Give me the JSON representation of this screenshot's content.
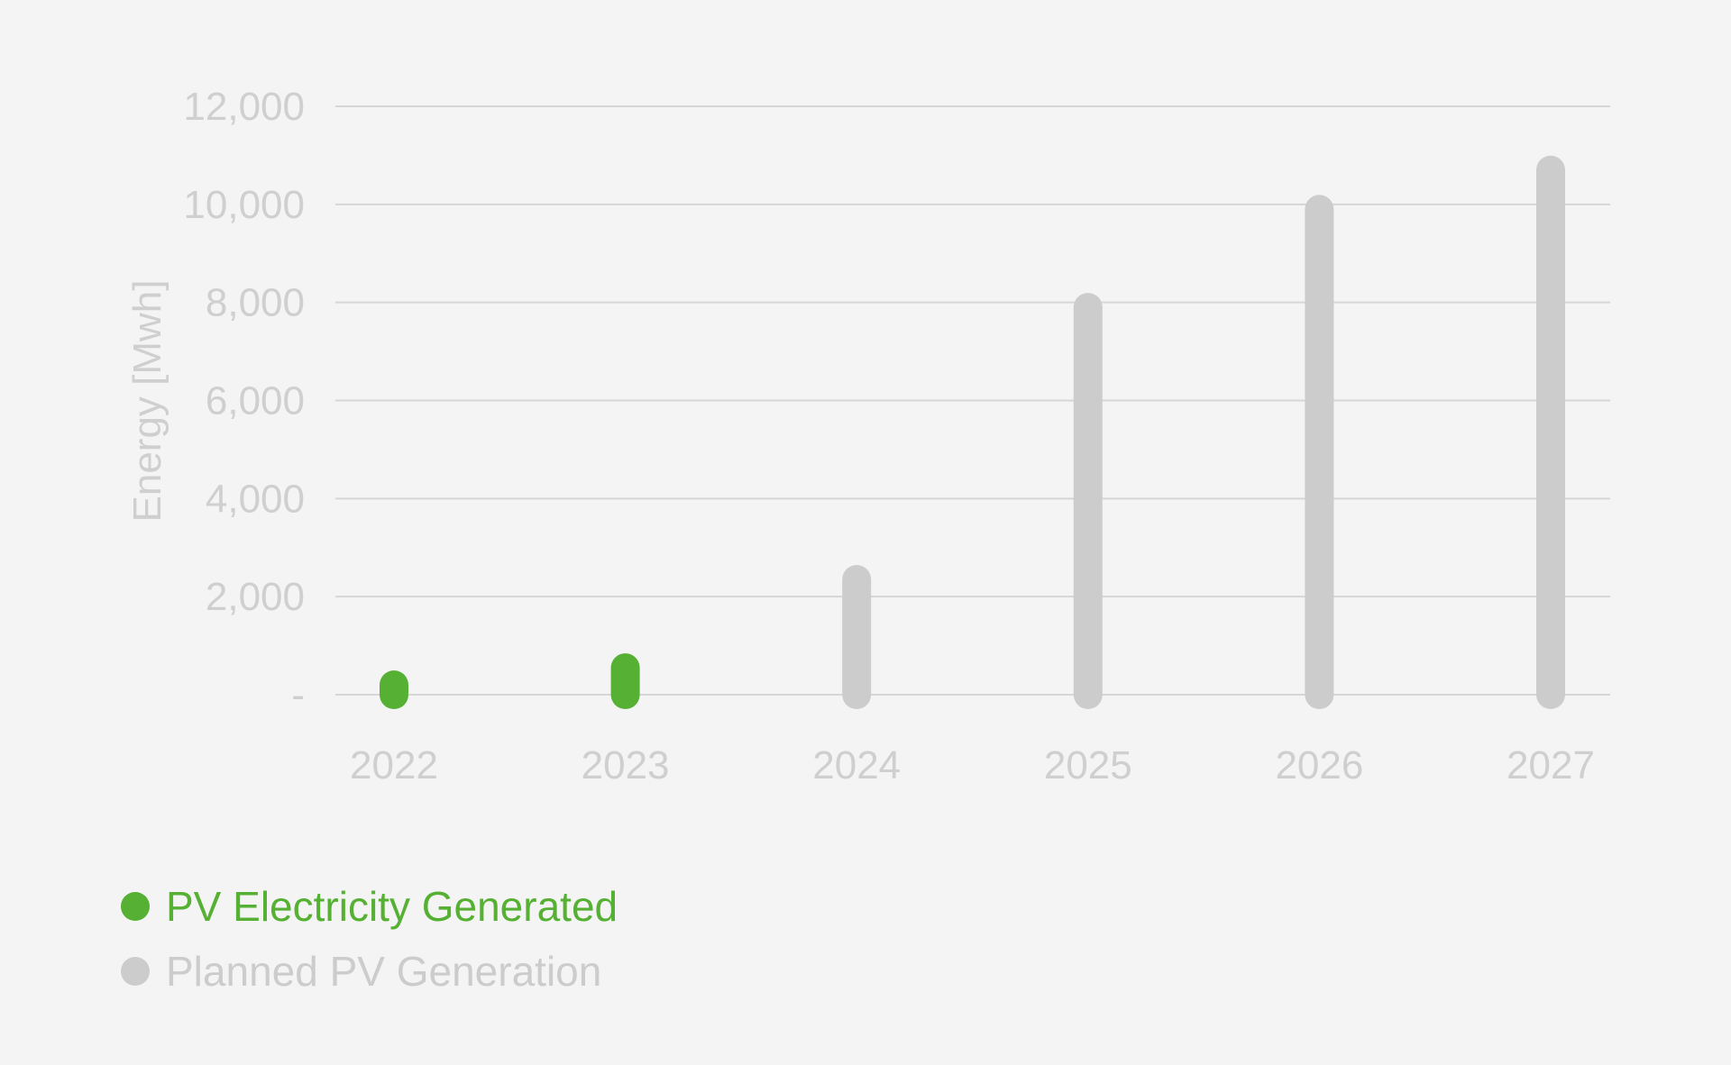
{
  "chart_data": {
    "type": "bar",
    "categories": [
      "2022",
      "2023",
      "2024",
      "2025",
      "2026",
      "2027"
    ],
    "series": [
      {
        "name": "PV Electricity Generated",
        "color": "#55b033",
        "values": [
          200,
          550,
          null,
          null,
          null,
          null
        ]
      },
      {
        "name": "Planned PV Generation",
        "color": "#cccccc",
        "values": [
          null,
          null,
          2350,
          7900,
          9900,
          10700
        ]
      }
    ],
    "ylabel": "Energy [Mwh]",
    "xlabel": "",
    "ylim": [
      0,
      12000
    ],
    "yticks": [
      0,
      2000,
      4000,
      6000,
      8000,
      10000,
      12000
    ],
    "ytick_labels": [
      "-",
      "2,000",
      "4,000",
      "6,000",
      "8,000",
      "10,000",
      "12,000"
    ],
    "grid": true,
    "legend_position": "bottom-left"
  },
  "colors": {
    "background": "#f4f4f4",
    "grid": "#d6d6d6",
    "text": "#cfcfcf"
  }
}
